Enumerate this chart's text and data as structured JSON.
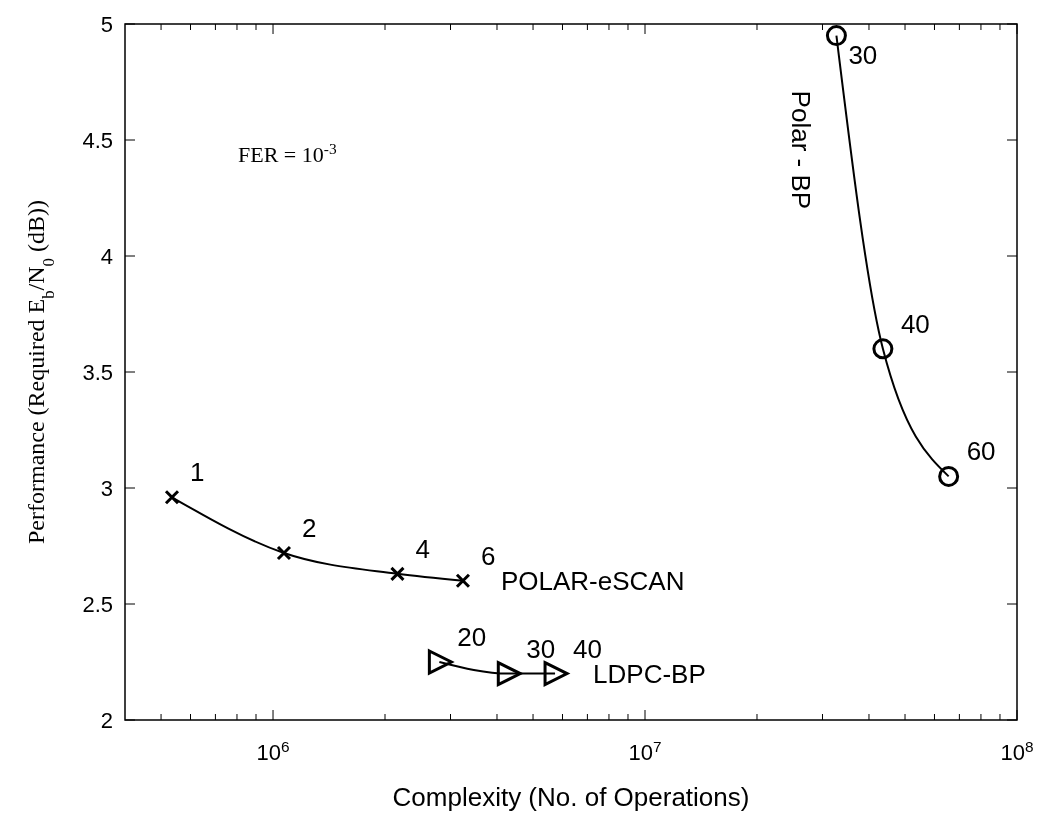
{
  "chart_data": {
    "type": "line",
    "xlabel": "Complexity (No. of Operations)",
    "ylabel": "Performance (Required E$_{b}$/N$_{0}$ (dB))",
    "log": "x",
    "grid": false,
    "line_style": "solid",
    "xlim": [
      400000,
      100000000
    ],
    "xticks": [
      {
        "value": 500000,
        "label": null
      },
      {
        "value": 600000,
        "label": null
      },
      {
        "value": 700000,
        "label": null
      },
      {
        "value": 800000,
        "label": null
      },
      {
        "value": 900000,
        "label": null
      },
      {
        "value": 1000000,
        "label": "10$^{6}$"
      },
      {
        "value": 2000000,
        "label": null
      },
      {
        "value": 3000000,
        "label": null
      },
      {
        "value": 4000000,
        "label": null
      },
      {
        "value": 5000000,
        "label": null
      },
      {
        "value": 6000000,
        "label": null
      },
      {
        "value": 7000000,
        "label": null
      },
      {
        "value": 8000000,
        "label": null
      },
      {
        "value": 9000000,
        "label": null
      },
      {
        "value": 10000000,
        "label": "10$^{7}$"
      },
      {
        "value": 20000000,
        "label": null
      },
      {
        "value": 30000000,
        "label": null
      },
      {
        "value": 40000000,
        "label": null
      },
      {
        "value": 50000000,
        "label": null
      },
      {
        "value": 60000000,
        "label": null
      },
      {
        "value": 70000000,
        "label": null
      },
      {
        "value": 80000000,
        "label": null
      },
      {
        "value": 90000000,
        "label": null
      },
      {
        "value": 100000000,
        "label": "10$^{8}$"
      }
    ],
    "ylim": [
      2,
      5
    ],
    "yticks": [
      2,
      2.5,
      3,
      3.5,
      4,
      4.5,
      5
    ],
    "series": [
      {
        "name": "POLAR-eSCAN",
        "color": "#000000",
        "marker": "cross",
        "x": [
          535000,
          1070000,
          2160000,
          3240000
        ],
        "values": [
          2.96,
          2.72,
          2.63,
          2.6
        ]
      },
      {
        "name": "LDPC-BP",
        "color": "#000000",
        "marker": "triangle",
        "x": [
          2800000,
          4290000,
          5730000
        ],
        "values": [
          2.25,
          2.2,
          2.2
        ]
      },
      {
        "name": "Polar - BP",
        "color": "#000000",
        "marker": "circle",
        "x": [
          32700000,
          43600000,
          65500000
        ],
        "values": [
          4.95,
          3.6,
          3.05
        ]
      }
    ],
    "annotations": [
      "FER = 10$^{-3}$",
      {
        "text": "1",
        "x": 535000,
        "y": 2.96
      },
      {
        "text": "2",
        "x": 1070000,
        "y": 2.72
      },
      {
        "text": "4",
        "x": 2160000,
        "y": 2.63
      },
      {
        "text": "6",
        "x": 3240000,
        "y": 2.6
      },
      {
        "text": "20",
        "x": 2800000,
        "y": 2.25
      },
      {
        "text": "30",
        "x": 4290000,
        "y": 2.2
      },
      {
        "text": "40",
        "x": 5730000,
        "y": 2.2
      },
      {
        "text": "30",
        "x": 32700000,
        "y": 4.95
      },
      {
        "text": "40",
        "x": 43600000,
        "y": 3.6
      },
      {
        "text": "60",
        "x": 65500000,
        "y": 3.05
      }
    ]
  }
}
